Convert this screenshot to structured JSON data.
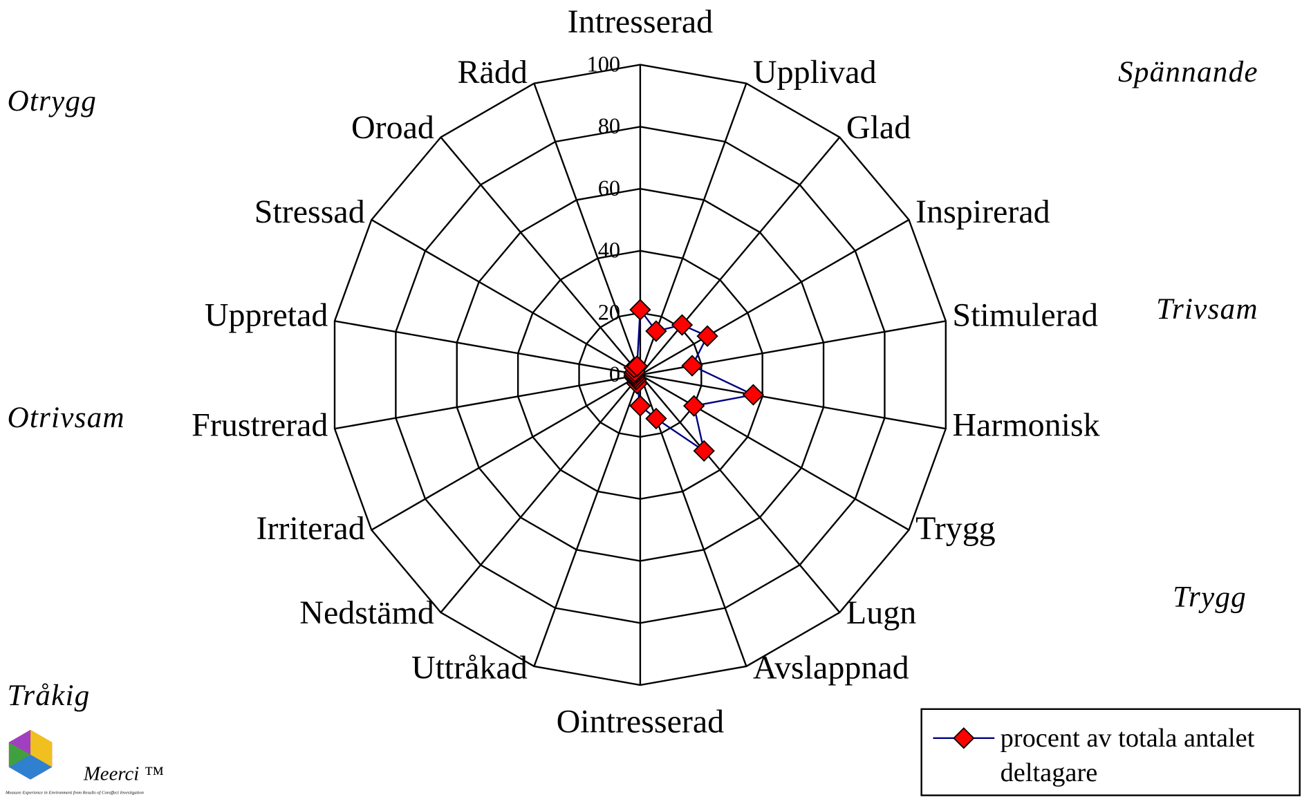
{
  "chart_data": {
    "type": "radar",
    "categories": [
      "Intresserad",
      "Upplivad",
      "Glad",
      "Inspirerad",
      "Stimulerad",
      "Harmonisk",
      "Trygg",
      "Lugn",
      "Avslappnad",
      "Ointresserad",
      "Uttråkad",
      "Nedstämd",
      "Irriterad",
      "Frustrerad",
      "Uppretad",
      "Stressad",
      "Oroad",
      "Rädd"
    ],
    "series": [
      {
        "name": "procent av totala antalet deltagare",
        "color": "#000080",
        "marker_color": "#ff0000",
        "values": [
          21,
          15,
          21,
          25,
          17,
          37,
          20,
          32,
          15,
          10,
          3,
          2,
          2,
          2,
          2,
          2,
          3,
          3
        ]
      }
    ],
    "rlim": [
      0,
      100
    ],
    "rticks": [
      0,
      20,
      40,
      60,
      80,
      100
    ],
    "grid": true,
    "legend": "bottom-right",
    "annotations": [
      "Otrygg",
      "Spännande",
      "Trivsam",
      "Otrivsam",
      "Trygg",
      "Tråkig"
    ],
    "logo": {
      "name": "Meerci ™",
      "tagline": "Measure Experience in Environment from Results of Coraffect Investigation"
    }
  }
}
